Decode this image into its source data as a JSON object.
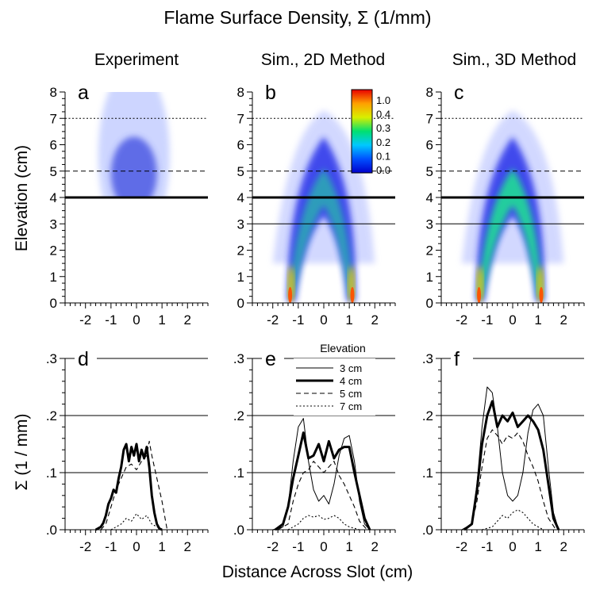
{
  "figure": {
    "title": "Flame Surface Density, Σ (1/mm)",
    "col_titles": [
      "Experiment",
      "Sim., 2D Method",
      "Sim., 3D Method"
    ],
    "xlabel": "Distance Across Slot (cm)",
    "ylabel_top": "Elevation (cm)",
    "ylabel_bottom": "Σ (1 / mm)"
  },
  "colorbar": {
    "tick_labels": [
      "1.0",
      "0.4",
      "0.3",
      "0.2",
      "0.1",
      "0.0"
    ],
    "colors": [
      "#0000cc",
      "#0050ff",
      "#00c8ff",
      "#00e070",
      "#d8ee00",
      "#ffa000",
      "#e80000"
    ]
  },
  "legend": {
    "title": "Elevation",
    "entries": [
      "3 cm",
      "4 cm",
      "5 cm",
      "7 cm"
    ]
  },
  "chart_data": [
    {
      "panel": "a",
      "type": "heatmap",
      "title": "Experiment",
      "xlabel": "",
      "ylabel": "Elevation (cm)",
      "xlim": [
        -2.8,
        2.8
      ],
      "ylim": [
        0,
        8
      ],
      "xticks": [
        "-2",
        "-1",
        "0",
        "1",
        "2"
      ],
      "yticks": [
        "0",
        "1",
        "2",
        "3",
        "4",
        "5",
        "6",
        "7",
        "8"
      ],
      "reference_lines_cm": [
        4,
        5,
        7
      ],
      "flame_shape": "cap",
      "flame_anchor_x": [
        -1.2,
        1.1
      ],
      "flame_tip_y": 7.3,
      "data_floor_y": 4.0
    },
    {
      "panel": "b",
      "type": "heatmap",
      "title": "Sim., 2D Method",
      "xlabel": "",
      "ylabel": "",
      "xlim": [
        -2.8,
        2.8
      ],
      "ylim": [
        0,
        8
      ],
      "xticks": [
        "-2",
        "-1",
        "0",
        "1",
        "2"
      ],
      "yticks": [
        "0",
        "1",
        "2",
        "3",
        "4",
        "5",
        "6",
        "7",
        "8"
      ],
      "reference_lines_cm": [
        3,
        4,
        5,
        7
      ],
      "flame_shape": "inverted-V",
      "flame_anchor_x": [
        -1.4,
        1.2
      ],
      "flame_tip_y": 7.3,
      "data_floor_y": 0
    },
    {
      "panel": "c",
      "type": "heatmap",
      "title": "Sim., 3D Method",
      "xlabel": "",
      "ylabel": "",
      "xlim": [
        -2.8,
        2.8
      ],
      "ylim": [
        0,
        8
      ],
      "xticks": [
        "-2",
        "-1",
        "0",
        "1",
        "2"
      ],
      "yticks": [
        "0",
        "1",
        "2",
        "3",
        "4",
        "5",
        "6",
        "7",
        "8"
      ],
      "reference_lines_cm": [
        3,
        4,
        5,
        7
      ],
      "flame_shape": "inverted-V",
      "flame_anchor_x": [
        -1.4,
        1.2
      ],
      "flame_tip_y": 7.3,
      "data_floor_y": 0
    },
    {
      "panel": "d",
      "type": "line",
      "title": "",
      "xlabel": "Distance Across Slot (cm)",
      "ylabel": "Σ (1 / mm)",
      "xlim": [
        -2.8,
        2.8
      ],
      "ylim": [
        0,
        0.3
      ],
      "xticks": [
        "-2",
        "-1",
        "0",
        "1",
        "2"
      ],
      "yticks": [
        ".0",
        ".1",
        ".2",
        ".3"
      ],
      "gridlines_y": [
        0.1,
        0.2,
        0.3
      ],
      "series": [
        {
          "name": "4 cm",
          "style": "thick",
          "x": [
            -1.6,
            -1.4,
            -1.3,
            -1.2,
            -1.1,
            -1.0,
            -0.9,
            -0.8,
            -0.7,
            -0.6,
            -0.5,
            -0.4,
            -0.3,
            -0.2,
            -0.1,
            0.0,
            0.1,
            0.2,
            0.3,
            0.4,
            0.5,
            0.6,
            0.7,
            0.8,
            0.9,
            1.0
          ],
          "y": [
            0.0,
            0.005,
            0.012,
            0.025,
            0.045,
            0.055,
            0.07,
            0.065,
            0.09,
            0.11,
            0.14,
            0.15,
            0.12,
            0.145,
            0.13,
            0.15,
            0.12,
            0.14,
            0.125,
            0.145,
            0.11,
            0.06,
            0.03,
            0.01,
            0.002,
            0.0
          ]
        },
        {
          "name": "5 cm",
          "style": "dashed",
          "x": [
            -1.4,
            -1.2,
            -1.0,
            -0.8,
            -0.6,
            -0.4,
            -0.2,
            0.0,
            0.2,
            0.4,
            0.5,
            0.6,
            0.8,
            1.0,
            1.2
          ],
          "y": [
            0.0,
            0.01,
            0.04,
            0.07,
            0.09,
            0.11,
            0.115,
            0.105,
            0.12,
            0.13,
            0.155,
            0.13,
            0.09,
            0.05,
            0.0
          ]
        },
        {
          "name": "7 cm",
          "style": "dotted",
          "x": [
            -1.0,
            -0.8,
            -0.6,
            -0.4,
            -0.2,
            0.0,
            0.2,
            0.4,
            0.6,
            0.8,
            1.0
          ],
          "y": [
            0.0,
            0.005,
            0.01,
            0.02,
            0.015,
            0.028,
            0.018,
            0.025,
            0.01,
            0.005,
            0.0
          ]
        }
      ]
    },
    {
      "panel": "e",
      "type": "line",
      "title": "",
      "xlabel": "Distance Across Slot (cm)",
      "ylabel": "",
      "xlim": [
        -2.8,
        2.8
      ],
      "ylim": [
        0,
        0.3
      ],
      "xticks": [
        "-2",
        "-1",
        "0",
        "1",
        "2"
      ],
      "yticks": [
        ".0",
        ".1",
        ".2",
        ".3"
      ],
      "gridlines_y": [
        0.1,
        0.2,
        0.3
      ],
      "series": [
        {
          "name": "3 cm",
          "style": "thin",
          "x": [
            -2.0,
            -1.6,
            -1.4,
            -1.2,
            -1.0,
            -0.8,
            -0.6,
            -0.4,
            -0.2,
            0.0,
            0.2,
            0.4,
            0.6,
            0.8,
            1.0,
            1.2,
            1.4,
            1.6,
            1.8
          ],
          "y": [
            0.0,
            0.005,
            0.04,
            0.12,
            0.18,
            0.195,
            0.12,
            0.07,
            0.05,
            0.06,
            0.045,
            0.08,
            0.13,
            0.16,
            0.165,
            0.12,
            0.05,
            0.01,
            0.0
          ]
        },
        {
          "name": "4 cm",
          "style": "thick",
          "x": [
            -1.9,
            -1.6,
            -1.4,
            -1.2,
            -1.0,
            -0.8,
            -0.6,
            -0.4,
            -0.2,
            0.0,
            0.2,
            0.4,
            0.6,
            0.8,
            1.0,
            1.2,
            1.4,
            1.6,
            1.8
          ],
          "y": [
            0.0,
            0.01,
            0.04,
            0.09,
            0.13,
            0.17,
            0.125,
            0.13,
            0.15,
            0.12,
            0.155,
            0.125,
            0.14,
            0.145,
            0.145,
            0.1,
            0.06,
            0.02,
            0.0
          ]
        },
        {
          "name": "5 cm",
          "style": "dashed",
          "x": [
            -1.8,
            -1.4,
            -1.2,
            -1.0,
            -0.8,
            -0.6,
            -0.4,
            -0.2,
            0.0,
            0.2,
            0.4,
            0.6,
            0.8,
            1.0,
            1.2,
            1.4,
            1.7
          ],
          "y": [
            0.0,
            0.01,
            0.05,
            0.08,
            0.1,
            0.105,
            0.12,
            0.11,
            0.1,
            0.11,
            0.12,
            0.095,
            0.08,
            0.06,
            0.04,
            0.015,
            0.0
          ]
        },
        {
          "name": "7 cm",
          "style": "dotted",
          "x": [
            -1.4,
            -1.0,
            -0.8,
            -0.6,
            -0.4,
            -0.2,
            0.0,
            0.2,
            0.4,
            0.6,
            0.8,
            1.0,
            1.4
          ],
          "y": [
            0.0,
            0.01,
            0.02,
            0.025,
            0.022,
            0.025,
            0.018,
            0.02,
            0.025,
            0.02,
            0.01,
            0.005,
            0.0
          ]
        }
      ]
    },
    {
      "panel": "f",
      "type": "line",
      "title": "",
      "xlabel": "Distance Across Slot (cm)",
      "ylabel": "",
      "xlim": [
        -2.8,
        2.8
      ],
      "ylim": [
        0,
        0.3
      ],
      "xticks": [
        "-2",
        "-1",
        "0",
        "1",
        "2"
      ],
      "yticks": [
        ".0",
        ".1",
        ".2",
        ".3"
      ],
      "gridlines_y": [
        0.1,
        0.2,
        0.3
      ],
      "series": [
        {
          "name": "3 cm",
          "style": "thin",
          "x": [
            -2.0,
            -1.6,
            -1.4,
            -1.2,
            -1.0,
            -0.8,
            -0.6,
            -0.4,
            -0.2,
            0.0,
            0.2,
            0.4,
            0.6,
            0.8,
            1.0,
            1.2,
            1.4,
            1.6,
            1.8
          ],
          "y": [
            0.0,
            0.01,
            0.08,
            0.18,
            0.25,
            0.24,
            0.18,
            0.1,
            0.06,
            0.05,
            0.06,
            0.1,
            0.17,
            0.21,
            0.22,
            0.2,
            0.11,
            0.03,
            0.0
          ]
        },
        {
          "name": "4 cm",
          "style": "thick",
          "x": [
            -1.9,
            -1.6,
            -1.4,
            -1.2,
            -1.0,
            -0.8,
            -0.6,
            -0.4,
            -0.2,
            0.0,
            0.2,
            0.4,
            0.6,
            0.8,
            1.0,
            1.2,
            1.4,
            1.6,
            1.8
          ],
          "y": [
            0.0,
            0.01,
            0.07,
            0.15,
            0.2,
            0.225,
            0.18,
            0.2,
            0.19,
            0.205,
            0.18,
            0.19,
            0.2,
            0.19,
            0.175,
            0.14,
            0.08,
            0.02,
            0.0
          ]
        },
        {
          "name": "5 cm",
          "style": "dashed",
          "x": [
            -1.9,
            -1.6,
            -1.4,
            -1.2,
            -1.0,
            -0.8,
            -0.6,
            -0.4,
            -0.2,
            0.0,
            0.2,
            0.4,
            0.6,
            0.8,
            1.0,
            1.2,
            1.4,
            1.7
          ],
          "y": [
            0.0,
            0.01,
            0.05,
            0.11,
            0.16,
            0.175,
            0.165,
            0.15,
            0.165,
            0.16,
            0.17,
            0.155,
            0.13,
            0.11,
            0.085,
            0.05,
            0.02,
            0.0
          ]
        },
        {
          "name": "7 cm",
          "style": "dotted",
          "x": [
            -1.2,
            -0.8,
            -0.6,
            -0.4,
            -0.2,
            0.0,
            0.2,
            0.4,
            0.6,
            0.8,
            1.0,
            1.2
          ],
          "y": [
            0.0,
            0.005,
            0.015,
            0.025,
            0.02,
            0.03,
            0.035,
            0.03,
            0.02,
            0.01,
            0.005,
            0.0
          ]
        }
      ]
    }
  ]
}
